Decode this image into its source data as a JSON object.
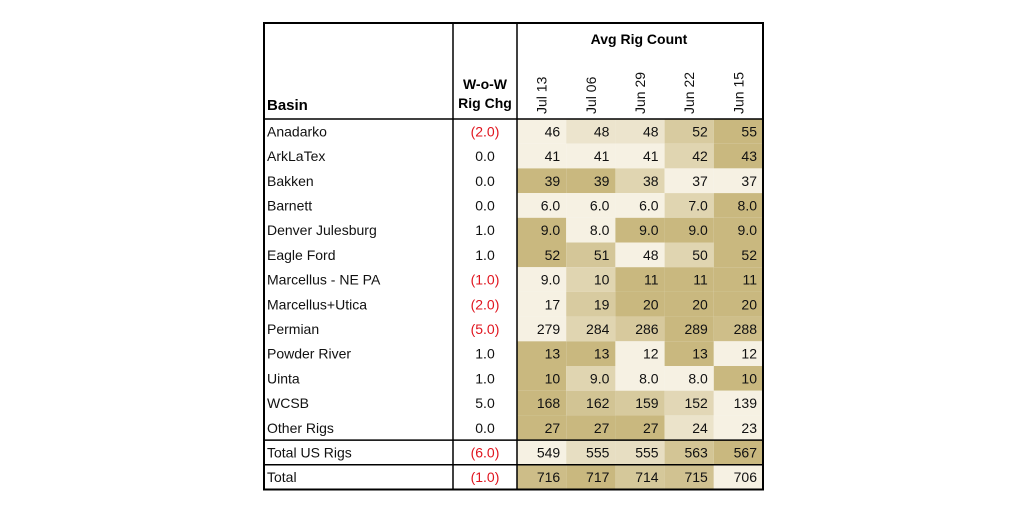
{
  "chart_data": {
    "type": "table",
    "header": {
      "basin": "Basin",
      "wow_line1": "W-o-W",
      "wow_line2": "Rig Chg",
      "group": "Avg Rig Count"
    },
    "dates": [
      "Jul 13",
      "Jul 06",
      "Jun 29",
      "Jun 22",
      "Jun 15"
    ],
    "rows": [
      {
        "basin": "Anadarko",
        "wow": "(2.0)",
        "negative": true,
        "values": [
          "46",
          "48",
          "48",
          "52",
          "55"
        ]
      },
      {
        "basin": "ArkLaTex",
        "wow": "0.0",
        "negative": false,
        "values": [
          "41",
          "41",
          "41",
          "42",
          "43"
        ]
      },
      {
        "basin": "Bakken",
        "wow": "0.0",
        "negative": false,
        "values": [
          "39",
          "39",
          "38",
          "37",
          "37"
        ]
      },
      {
        "basin": "Barnett",
        "wow": "0.0",
        "negative": false,
        "values": [
          "6.0",
          "6.0",
          "6.0",
          "7.0",
          "8.0"
        ]
      },
      {
        "basin": "Denver Julesburg",
        "wow": "1.0",
        "negative": false,
        "values": [
          "9.0",
          "8.0",
          "9.0",
          "9.0",
          "9.0"
        ]
      },
      {
        "basin": "Eagle Ford",
        "wow": "1.0",
        "negative": false,
        "values": [
          "52",
          "51",
          "48",
          "50",
          "52"
        ]
      },
      {
        "basin": "Marcellus - NE PA",
        "wow": "(1.0)",
        "negative": true,
        "values": [
          "9.0",
          "10",
          "11",
          "11",
          "11"
        ]
      },
      {
        "basin": "Marcellus+Utica",
        "wow": "(2.0)",
        "negative": true,
        "values": [
          "17",
          "19",
          "20",
          "20",
          "20"
        ]
      },
      {
        "basin": "Permian",
        "wow": "(5.0)",
        "negative": true,
        "values": [
          "279",
          "284",
          "286",
          "289",
          "288"
        ]
      },
      {
        "basin": "Powder River",
        "wow": "1.0",
        "negative": false,
        "values": [
          "13",
          "13",
          "12",
          "13",
          "12"
        ]
      },
      {
        "basin": "Uinta",
        "wow": "1.0",
        "negative": false,
        "values": [
          "10",
          "9.0",
          "8.0",
          "8.0",
          "10"
        ]
      },
      {
        "basin": "WCSB",
        "wow": "5.0",
        "negative": false,
        "values": [
          "168",
          "162",
          "159",
          "152",
          "139"
        ]
      },
      {
        "basin": "Other Rigs",
        "wow": "0.0",
        "negative": false,
        "values": [
          "27",
          "27",
          "27",
          "24",
          "23"
        ]
      }
    ],
    "totals": [
      {
        "basin": "Total US Rigs",
        "wow": "(6.0)",
        "negative": true,
        "values": [
          "549",
          "555",
          "555",
          "563",
          "567"
        ]
      },
      {
        "basin": "Total",
        "wow": "(1.0)",
        "negative": true,
        "values": [
          "716",
          "717",
          "714",
          "715",
          "706"
        ]
      }
    ],
    "colors": {
      "heat_low": "#f6f1e3",
      "heat_high": "#c9b87f",
      "negative_text": "#e0141e",
      "text": "#111111",
      "border": "#000000"
    }
  }
}
